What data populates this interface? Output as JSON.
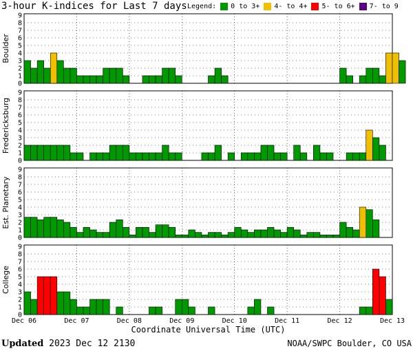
{
  "title": "3-hour K-indices for Last 7 days",
  "legend": {
    "label": "Legend:",
    "items": [
      {
        "label": "0 to 3+",
        "color": "#009900"
      },
      {
        "label": "4- to 4+",
        "color": "#f0c000"
      },
      {
        "label": "5- to 6+",
        "color": "#ff0000"
      },
      {
        "label": "7- to 9",
        "color": "#5a0080"
      }
    ]
  },
  "footer": {
    "updated_label": "Updated",
    "updated_value": "2023 Dec 12 2130",
    "credit": "NOAA/SWPC Boulder, CO USA"
  },
  "chart_data": {
    "type": "bar",
    "xlabel": "Coordinate Universal Time (UTC)",
    "x_tick_labels": [
      "Dec 06",
      "Dec 07",
      "Dec 08",
      "Dec 09",
      "Dec 10",
      "Dec 11",
      "Dec 12",
      "Dec 13"
    ],
    "ylim": [
      0,
      9
    ],
    "y_ticks": [
      0,
      1,
      2,
      3,
      4,
      5,
      6,
      7,
      8,
      9
    ],
    "bars_per_day": 8,
    "color_scale": [
      {
        "min": 0,
        "max": 3.99,
        "color": "#009900"
      },
      {
        "min": 4,
        "max": 4.99,
        "color": "#f0c000"
      },
      {
        "min": 5,
        "max": 6.99,
        "color": "#ff0000"
      },
      {
        "min": 7,
        "max": 9,
        "color": "#5a0080"
      }
    ],
    "panels": [
      {
        "ylabel": "Boulder",
        "values": [
          3,
          2,
          3,
          2,
          4,
          3,
          2,
          2,
          1,
          1,
          1,
          1,
          2,
          2,
          2,
          1,
          0,
          0,
          1,
          1,
          1,
          2,
          2,
          1,
          0,
          0,
          0,
          0,
          1,
          2,
          1,
          0,
          0,
          0,
          0,
          0,
          0,
          0,
          0,
          0,
          0,
          0,
          0,
          0,
          0,
          0,
          0,
          0,
          2,
          1,
          0,
          1,
          2,
          2,
          1,
          4,
          4,
          3,
          0
        ]
      },
      {
        "ylabel": "Fredericksburg",
        "values": [
          2,
          2,
          2,
          2,
          2,
          2,
          2,
          1,
          1,
          0,
          1,
          1,
          1,
          2,
          2,
          2,
          1,
          1,
          1,
          1,
          1,
          2,
          1,
          1,
          0,
          0,
          0,
          1,
          1,
          2,
          0,
          1,
          0,
          1,
          1,
          1,
          2,
          2,
          1,
          1,
          0,
          2,
          1,
          0,
          2,
          1,
          1,
          0,
          0,
          1,
          1,
          1,
          4,
          3,
          2,
          0
        ]
      },
      {
        "ylabel": "Est. Planetary",
        "values": [
          2.67,
          2.67,
          2.33,
          2.67,
          2.67,
          2.33,
          2,
          1.33,
          0.67,
          1.33,
          1,
          0.67,
          0.67,
          2,
          2.33,
          1.33,
          0.33,
          1.33,
          1.33,
          0.67,
          1.67,
          1.67,
          1.33,
          0.33,
          0.33,
          1,
          0.67,
          0.33,
          0.67,
          0.67,
          0.33,
          0.67,
          1.33,
          1,
          0.67,
          1,
          1,
          1.33,
          1,
          0.67,
          1.33,
          1,
          0.33,
          0.67,
          0.67,
          0.33,
          0.33,
          0.33,
          2,
          1.33,
          1,
          4,
          3.67,
          2.33,
          0,
          0
        ]
      },
      {
        "ylabel": "College",
        "values": [
          3,
          2,
          5,
          5,
          5,
          3,
          3,
          2,
          1,
          1,
          2,
          2,
          2,
          0,
          1,
          0,
          0,
          0,
          0,
          1,
          1,
          0,
          0,
          2,
          2,
          1,
          0,
          0,
          1,
          0,
          0,
          0,
          0,
          0,
          1,
          2,
          0,
          1,
          0,
          0,
          0,
          0,
          0,
          0,
          0,
          0,
          0,
          0,
          0,
          0,
          0,
          1,
          1,
          6,
          5,
          2,
          0
        ]
      }
    ]
  }
}
